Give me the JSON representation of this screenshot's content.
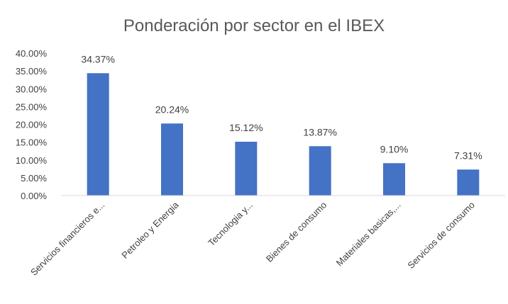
{
  "chart_data": {
    "type": "bar",
    "title": "Ponderación por sector en el IBEX",
    "xlabel": "",
    "ylabel": "",
    "categories": [
      "Servicios financieros e...",
      "Petroleo y Energia",
      "Tecnologia y...",
      "Bienes de consumo",
      "Materiales basicas,...",
      "Servicios de consumo"
    ],
    "values": [
      34.37,
      20.24,
      15.12,
      13.87,
      9.1,
      7.31
    ],
    "data_labels": [
      "34.37%",
      "20.24%",
      "15.12%",
      "13.87%",
      "9.10%",
      "7.31%"
    ],
    "yticks": [
      0,
      5,
      10,
      15,
      20,
      25,
      30,
      35,
      40
    ],
    "ytick_labels": [
      "0.00%",
      "5.00%",
      "10.00%",
      "15.00%",
      "20.00%",
      "25.00%",
      "30.00%",
      "35.00%",
      "40.00%"
    ],
    "ylim": [
      0,
      40
    ],
    "grid": false,
    "legend": "none",
    "bar_color": "#4472c4"
  }
}
